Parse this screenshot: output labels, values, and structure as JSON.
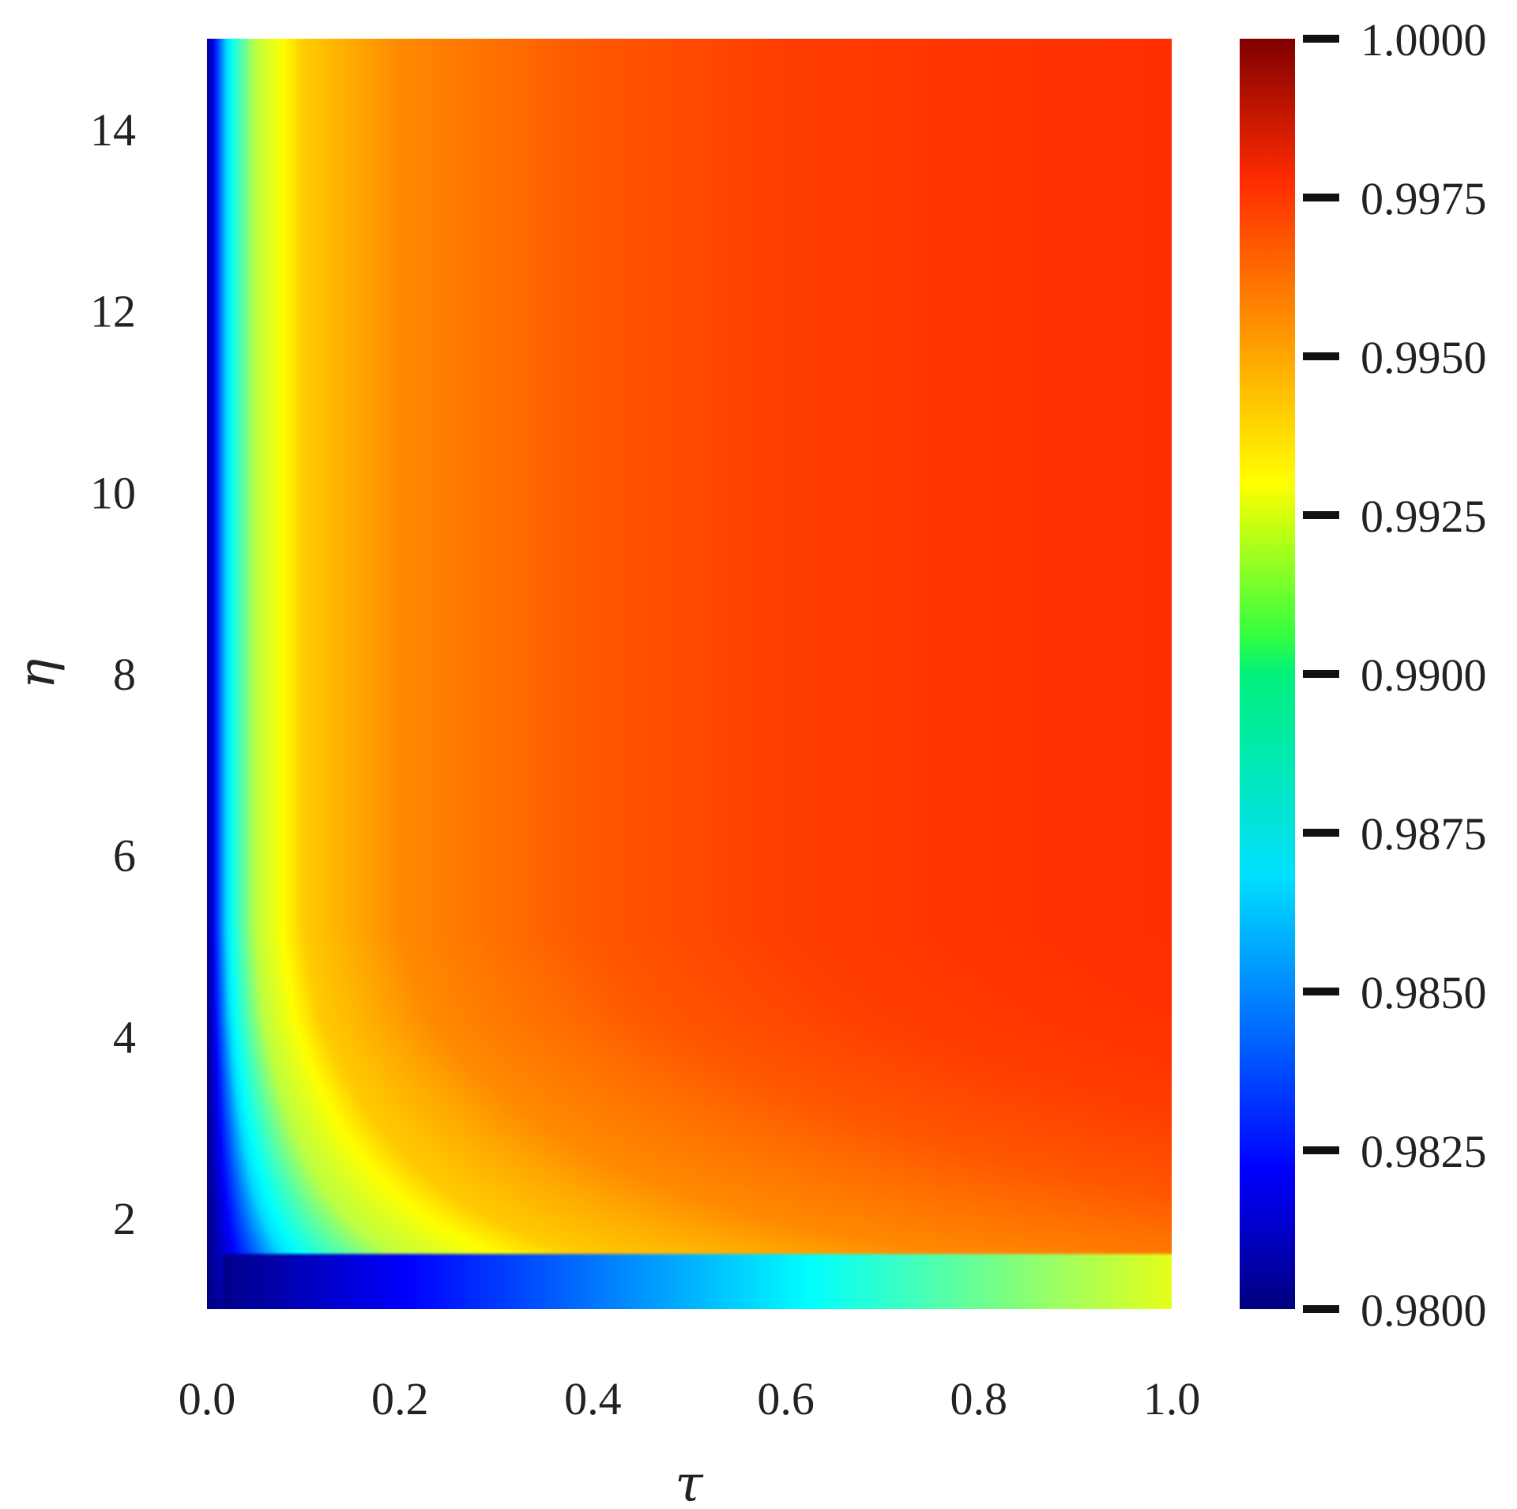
{
  "chart_data": {
    "type": "heatmap",
    "title": "",
    "xlabel": "τ",
    "ylabel": "η",
    "xlim": [
      0.0,
      1.0
    ],
    "ylim": [
      1.0,
      15.0
    ],
    "x_ticks": [
      "0.0",
      "0.2",
      "0.4",
      "0.6",
      "0.8",
      "1.0"
    ],
    "y_ticks": [
      "2",
      "4",
      "6",
      "8",
      "10",
      "12",
      "14"
    ],
    "colorbar": {
      "colormap": "jet",
      "min": 0.98,
      "max": 1.0,
      "ticks": [
        "0.9800",
        "0.9825",
        "0.9850",
        "0.9875",
        "0.9900",
        "0.9925",
        "0.9950",
        "0.9975",
        "1.0000"
      ]
    },
    "z_profile_by_x": [
      {
        "x": 0.0,
        "value": 0.98
      },
      {
        "x": 0.02,
        "value": 0.9868
      },
      {
        "x": 0.05,
        "value": 0.9912
      },
      {
        "x": 0.1,
        "value": 0.9935
      },
      {
        "x": 0.2,
        "value": 0.9948
      },
      {
        "x": 0.4,
        "value": 0.9958
      },
      {
        "x": 0.6,
        "value": 0.9963
      },
      {
        "x": 0.8,
        "value": 0.9965
      },
      {
        "x": 1.0,
        "value": 0.9966
      }
    ],
    "z_profile_at_x_0_6": [
      {
        "y": 1.0,
        "value": 0.9875
      },
      {
        "y": 1.5,
        "value": 0.9884
      },
      {
        "y": 2.0,
        "value": 0.99
      },
      {
        "y": 2.5,
        "value": 0.9913
      },
      {
        "y": 3.0,
        "value": 0.9925
      },
      {
        "y": 4.0,
        "value": 0.9942
      },
      {
        "y": 6.0,
        "value": 0.9955
      },
      {
        "y": 10.0,
        "value": 0.9962
      },
      {
        "y": 15.0,
        "value": 0.9964
      }
    ],
    "contour_y_by_level": [
      {
        "level": 0.985,
        "points": [
          {
            "x": 0.01,
            "y": 15
          },
          {
            "x": 0.02,
            "y": 8
          },
          {
            "x": 0.03,
            "y": 4
          },
          {
            "x": 0.06,
            "y": 2.5
          },
          {
            "x": 0.15,
            "y": 1.6
          },
          {
            "x": 0.3,
            "y": 1.05
          }
        ]
      },
      {
        "level": 0.99,
        "points": [
          {
            "x": 0.04,
            "y": 15
          },
          {
            "x": 0.07,
            "y": 8
          },
          {
            "x": 0.12,
            "y": 4.5
          },
          {
            "x": 0.2,
            "y": 3.2
          },
          {
            "x": 0.4,
            "y": 2.4
          },
          {
            "x": 0.7,
            "y": 1.9
          },
          {
            "x": 1.0,
            "y": 1.4
          }
        ]
      },
      {
        "level": 0.9925,
        "points": [
          {
            "x": 0.07,
            "y": 15
          },
          {
            "x": 0.12,
            "y": 8
          },
          {
            "x": 0.2,
            "y": 5.5
          },
          {
            "x": 0.35,
            "y": 4
          },
          {
            "x": 0.6,
            "y": 3
          },
          {
            "x": 1.0,
            "y": 2.3
          }
        ]
      },
      {
        "level": 0.995,
        "points": [
          {
            "x": 0.2,
            "y": 15
          },
          {
            "x": 0.35,
            "y": 9
          },
          {
            "x": 0.55,
            "y": 6.5
          },
          {
            "x": 0.8,
            "y": 4.5
          },
          {
            "x": 1.0,
            "y": 3.8
          }
        ]
      }
    ]
  }
}
